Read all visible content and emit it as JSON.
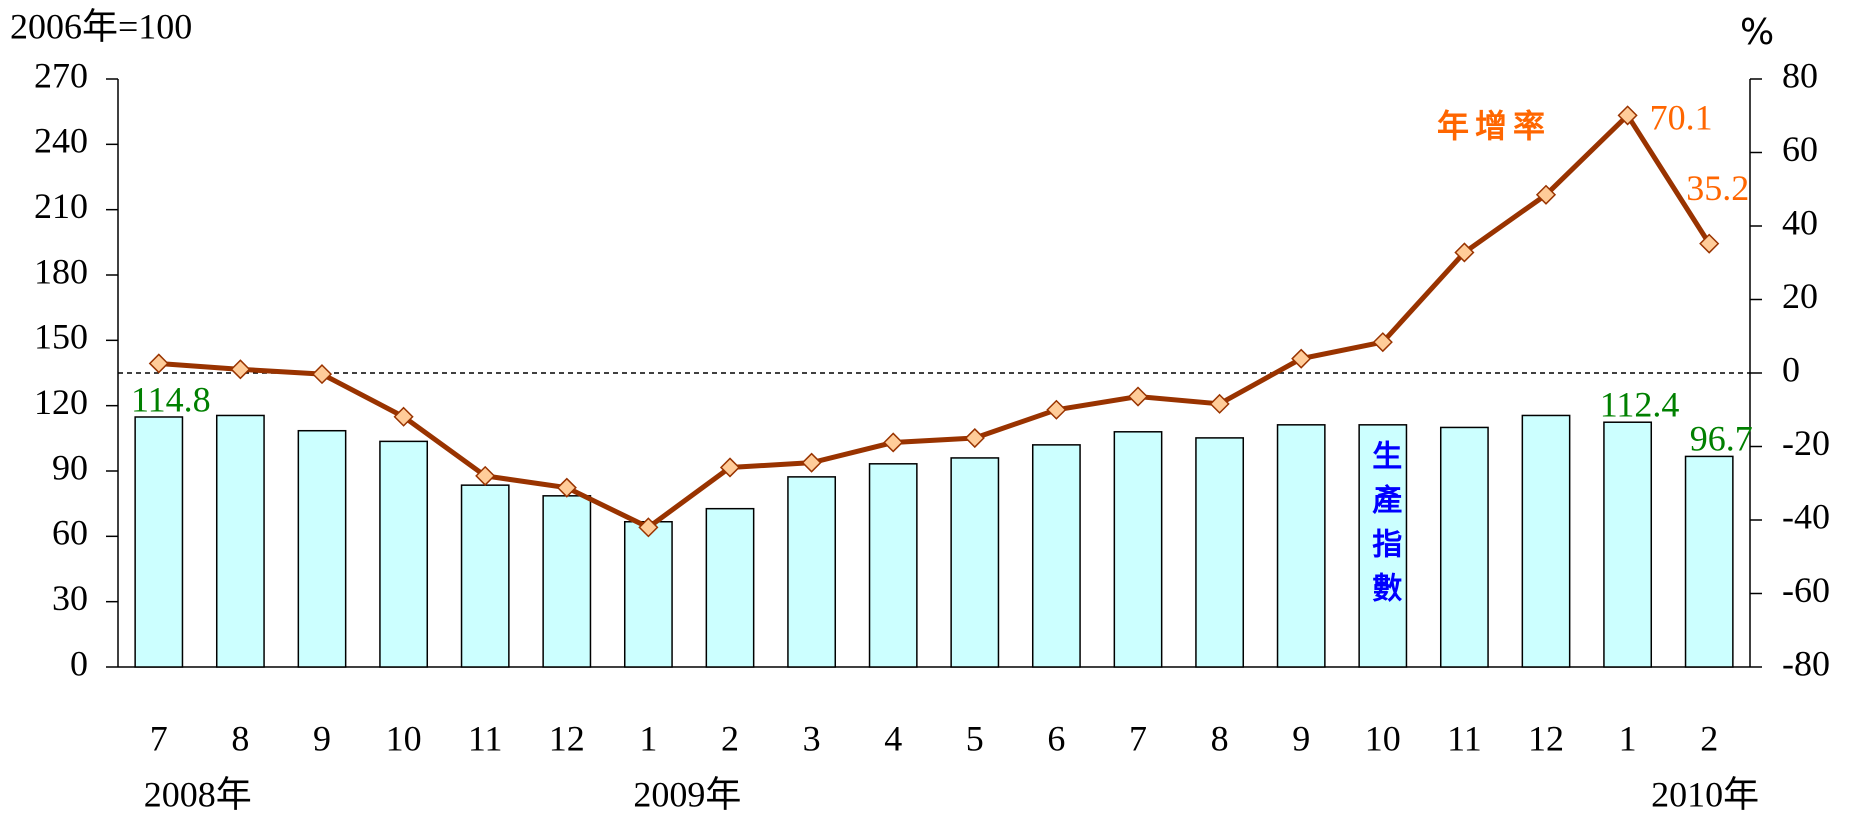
{
  "chart_data": {
    "type": "bar-line",
    "y_label": "2006年=100",
    "y2_label": "%",
    "categories": [
      "7",
      "8",
      "9",
      "10",
      "11",
      "12",
      "1",
      "2",
      "3",
      "4",
      "5",
      "6",
      "7",
      "8",
      "9",
      "10",
      "11",
      "12",
      "1",
      "2"
    ],
    "x_groups": [
      {
        "label": "2008年",
        "at": 0
      },
      {
        "label": "2009年",
        "at": 6
      },
      {
        "label": "2010年",
        "at": 19
      }
    ],
    "series": [
      {
        "name": "生產指數",
        "type": "bar",
        "color": "#ccffff",
        "edge": "#000000",
        "label_color": "#008000",
        "name_color": "#0000ff",
        "values": [
          114.8,
          115.5,
          108.5,
          103.6,
          83.5,
          78.6,
          66.7,
          72.7,
          87.3,
          93.3,
          96,
          102,
          108,
          105.2,
          111.2,
          111.2,
          110,
          115.5,
          112.4,
          96.7
        ],
        "value_labels": [
          "114.8",
          null,
          null,
          null,
          null,
          null,
          null,
          null,
          null,
          null,
          null,
          null,
          null,
          null,
          null,
          null,
          null,
          null,
          "112.4",
          "96.7"
        ]
      },
      {
        "name": "年增率",
        "type": "line",
        "axis": "y2",
        "color": "#993300",
        "marker_color": "#ffcc99",
        "label_color": "#ff6600",
        "values": [
          2.6,
          1,
          -0.3,
          -11.9,
          -28,
          -31.2,
          -42,
          -25.7,
          -24.4,
          -18.9,
          -17.7,
          -10,
          -6.4,
          -8.4,
          3.9,
          8.4,
          32.8,
          48.5,
          70.1,
          35.2
        ],
        "value_labels": [
          null,
          null,
          null,
          null,
          null,
          null,
          null,
          null,
          null,
          null,
          null,
          null,
          null,
          null,
          null,
          null,
          null,
          null,
          "70.1",
          "35.2"
        ]
      }
    ],
    "ylim": [
      0,
      270
    ],
    "yticks": [
      0,
      30,
      60,
      90,
      120,
      150,
      180,
      210,
      240,
      270
    ],
    "y2lim": [
      -80,
      80
    ],
    "y2ticks": [
      -80,
      -60,
      -40,
      -20,
      0,
      20,
      40,
      60,
      80
    ],
    "reference_line": {
      "axis": "y2",
      "value": 0
    }
  }
}
